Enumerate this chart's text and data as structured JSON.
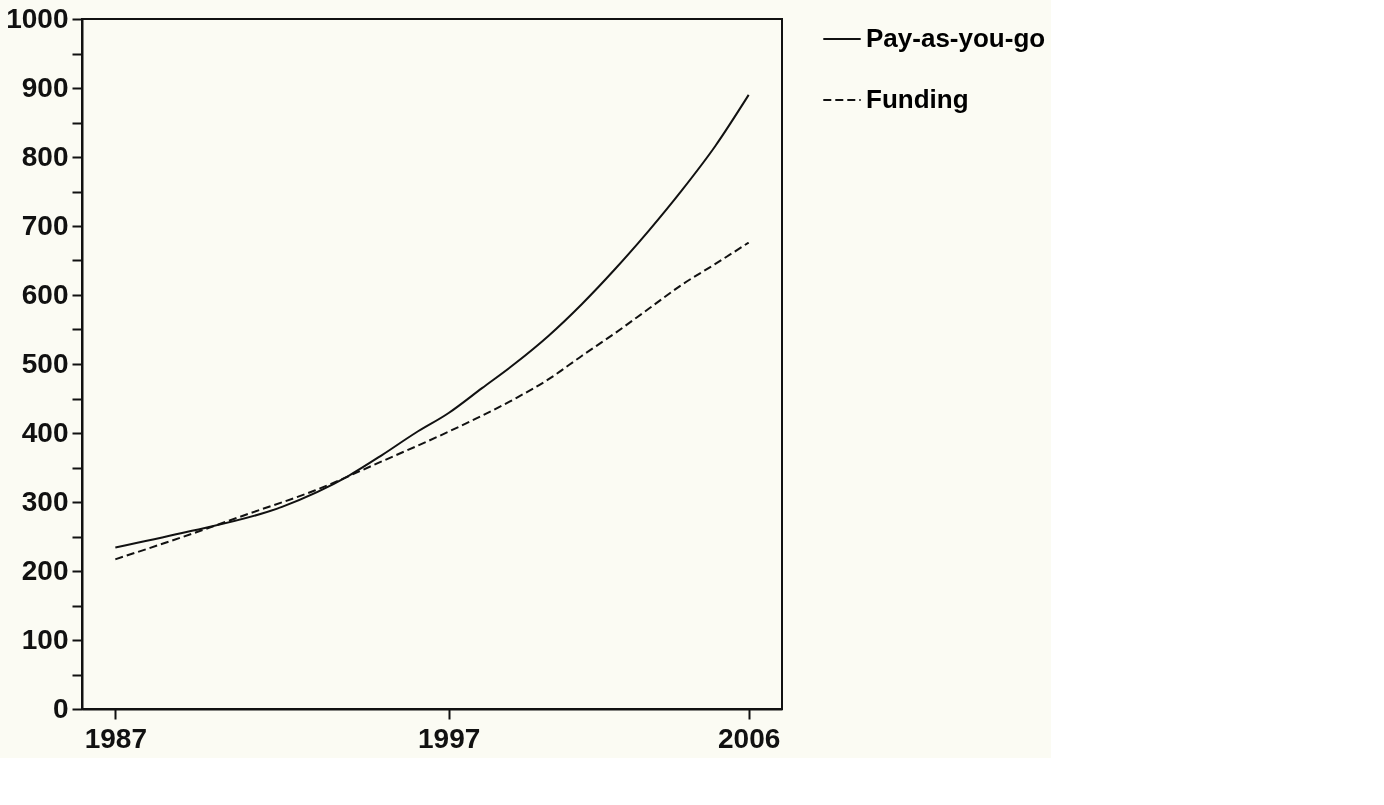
{
  "chart_data": {
    "type": "line",
    "x": [
      1987,
      1989,
      1992,
      1994,
      1995,
      1996,
      1997,
      1998,
      1999,
      2000,
      2001,
      2002,
      2003,
      2004,
      2005,
      2006
    ],
    "series": [
      {
        "name": "Pay-as-you-go",
        "color": "#111111",
        "line_style": "solid",
        "values": [
          234,
          255,
          293,
          338,
          368,
          400,
          429,
          465,
          501,
          541,
          587,
          638,
          693,
          752,
          816,
          890
        ]
      },
      {
        "name": "Funding",
        "color": "#111111",
        "line_style": "dashed",
        "x": [
          1987,
          1989,
          1991,
          1993,
          1995,
          1997,
          1999,
          2000,
          2001,
          2002,
          2003,
          2004,
          2005,
          2006
        ],
        "values": [
          217,
          249,
          283,
          317,
          359,
          402,
          450,
          478,
          512,
          545,
          580,
          615,
          645,
          676
        ]
      }
    ],
    "xlim": [
      1986,
      2007
    ],
    "xticks": [
      1987,
      1997,
      2006
    ],
    "ylim": [
      0,
      1000
    ],
    "yticks": [
      0,
      {
        "value": 50,
        "label": null
      },
      100,
      {
        "value": 150,
        "label": null
      },
      200,
      {
        "value": 250,
        "label": null
      },
      300,
      {
        "value": 350,
        "label": null
      },
      400,
      {
        "value": 450,
        "label": null
      },
      500,
      {
        "value": 550,
        "label": null
      },
      600,
      {
        "value": 650,
        "label": null
      },
      700,
      {
        "value": 750,
        "label": null
      },
      800,
      {
        "value": 850,
        "label": null
      },
      900,
      {
        "value": 950,
        "label": null
      },
      1000
    ],
    "grid": false,
    "legend": "top right",
    "marker": "none"
  }
}
